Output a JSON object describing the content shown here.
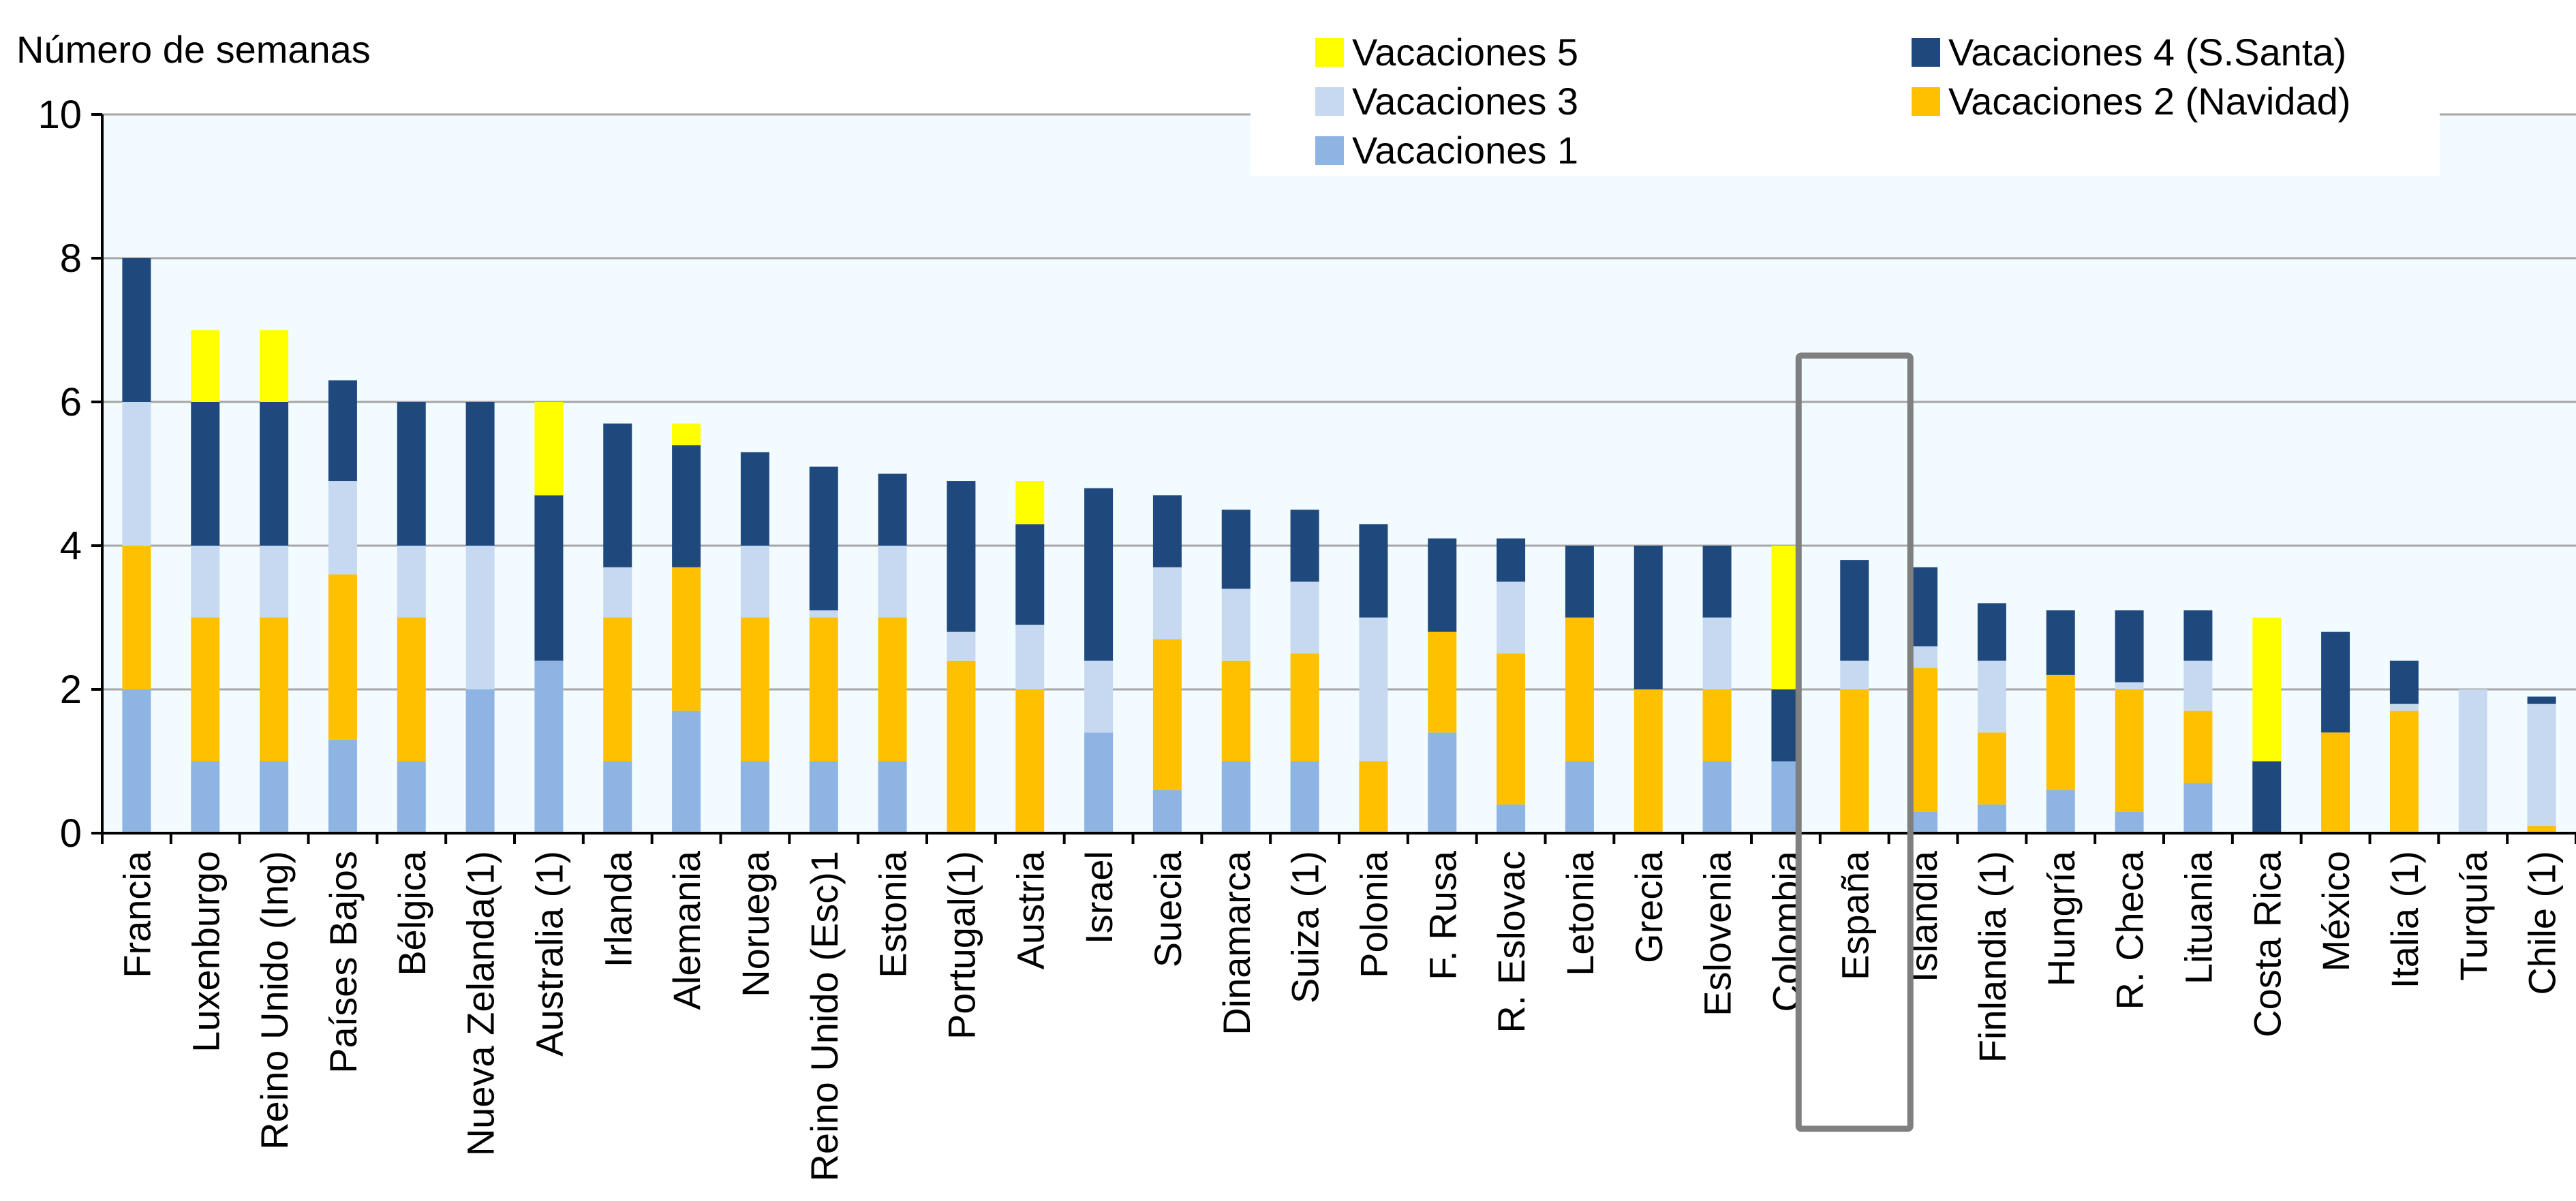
{
  "chart_data": {
    "type": "bar",
    "stacked": true,
    "ylabel": "Número de semanas",
    "ylim": [
      0,
      10
    ],
    "yticks": [
      0,
      2,
      4,
      6,
      8,
      10
    ],
    "grid": true,
    "legend_position": "top-right",
    "highlighted_category": "España",
    "categories": [
      "Francia",
      "Luxenburgo",
      "Reino Unido (Ing)",
      "Países Bajos",
      "Bélgica",
      "Nueva Zelanda(1)",
      "Australia (1)",
      "Irlanda",
      "Alemania",
      "Noruega",
      "Reino Unido (Esc)1",
      "Estonia",
      "Portugal(1)",
      "Austria",
      "Israel",
      "Suecia",
      "Dinamarca",
      "Suiza (1)",
      "Polonia",
      "F. Rusa",
      "R. Eslovac",
      "Letonia",
      "Grecia",
      "Eslovenia",
      "Colombia",
      "España",
      "Islandia",
      "Finlandia (1)",
      "Hungría",
      "R. Checa",
      "Lituania",
      "Costa Rica",
      "México",
      "Italia (1)",
      "Turquía",
      "Chile (1)"
    ],
    "series": [
      {
        "name": "Vacaciones 1",
        "color": "#8EB4E3",
        "values": [
          2,
          1,
          1,
          1.3,
          1,
          2,
          2.4,
          1,
          1.7,
          1,
          1,
          1,
          0,
          0,
          1.4,
          0.6,
          1,
          1,
          0,
          1.4,
          0.4,
          1,
          0,
          1,
          1,
          0,
          0.3,
          0.4,
          0.6,
          0.3,
          0.7,
          0,
          0,
          0,
          0,
          0
        ]
      },
      {
        "name": "Vacaciones 2 (Navidad)",
        "color": "#FFC000",
        "values": [
          2,
          2,
          2,
          2.3,
          2,
          0,
          0,
          2,
          2,
          2,
          2,
          2,
          2.4,
          2,
          0,
          2.1,
          1.4,
          1.5,
          1,
          1.4,
          2.1,
          2,
          2,
          1,
          0,
          2,
          2,
          1,
          1.6,
          1.7,
          1,
          0,
          1.4,
          1.7,
          0,
          0.1
        ]
      },
      {
        "name": "Vacaciones 3",
        "color": "#C6D9F1",
        "values": [
          2,
          1,
          1,
          1.3,
          1,
          2,
          0,
          0.7,
          0,
          1,
          0.1,
          1,
          0.4,
          0.9,
          1,
          1,
          1,
          1,
          2,
          0,
          1,
          0,
          0,
          1,
          0,
          0.4,
          0.3,
          1,
          0,
          0.1,
          0.7,
          0,
          0,
          0.1,
          2,
          1.7
        ]
      },
      {
        "name": "Vacaciones 4 (S.Santa)",
        "color": "#1F497D",
        "values": [
          2,
          2,
          2,
          1.4,
          2,
          2,
          2.3,
          2,
          1.7,
          1.3,
          2,
          1,
          2.1,
          1.4,
          2.4,
          1,
          1.1,
          1,
          1.3,
          1.3,
          0.6,
          1,
          2,
          1,
          1,
          1.4,
          1.1,
          0.8,
          0.9,
          1,
          0.7,
          1,
          1.4,
          0.6,
          0,
          0.1
        ]
      },
      {
        "name": "Vacaciones 5",
        "color": "#FFFF00",
        "values": [
          0,
          1,
          1,
          0,
          0,
          0,
          1.3,
          0,
          0.3,
          0,
          0,
          0,
          0,
          0.6,
          0,
          0,
          0,
          0,
          0,
          0,
          0,
          0,
          0,
          0,
          2,
          0,
          0,
          0,
          0,
          0,
          0,
          2,
          0,
          0,
          0,
          0
        ]
      }
    ],
    "legend_items": [
      {
        "label": "Vacaciones 5",
        "color": "#FFFF00"
      },
      {
        "label": "Vacaciones 4 (S.Santa)",
        "color": "#1F497D"
      },
      {
        "label": "Vacaciones 3",
        "color": "#C6D9F1"
      },
      {
        "label": "Vacaciones 2 (Navidad)",
        "color": "#FFC000"
      },
      {
        "label": "Vacaciones 1",
        "color": "#8EB4E3"
      }
    ],
    "colors": {
      "plot_background": "#F2FBFF",
      "gridline": "#A6A6A6",
      "axis": "#000000",
      "highlight_box": "#7F7F7F"
    }
  }
}
